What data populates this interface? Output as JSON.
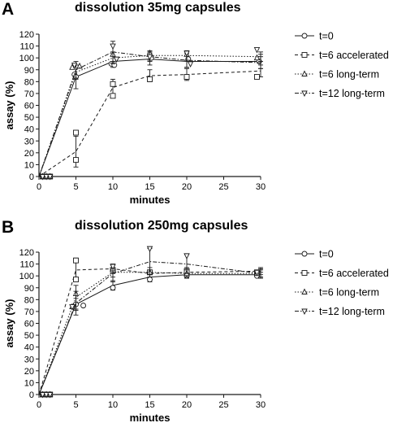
{
  "colors": {
    "ink": "#1a1a1a",
    "background": "#ffffff"
  },
  "chart_data": [
    {
      "panel": "A",
      "type": "line",
      "title": "dissolution 35mg capsules",
      "xlabel": "minutes",
      "ylabel": "assay (%)",
      "xlim": [
        0,
        30
      ],
      "ylim": [
        0,
        120
      ],
      "x_ticks": [
        0,
        5,
        10,
        15,
        20,
        25,
        30
      ],
      "y_ticks": [
        0,
        10,
        20,
        30,
        40,
        50,
        60,
        70,
        80,
        90,
        100,
        110,
        120
      ],
      "legend_position": "right",
      "grid": false,
      "series": [
        {
          "name": "t=0",
          "marker": "circle",
          "line": "solid",
          "x": [
            0,
            5,
            10,
            15,
            20,
            30
          ],
          "y": [
            0,
            84,
            97,
            99,
            97,
            97
          ],
          "err": [
            0,
            10,
            5,
            5,
            5,
            6
          ],
          "points": [
            [
              0.5,
              0
            ],
            [
              1,
              0
            ],
            [
              1.5,
              0
            ],
            [
              4.8,
              86
            ],
            [
              5,
              84
            ],
            [
              9.8,
              95
            ],
            [
              10.2,
              94
            ],
            [
              15.2,
              100
            ],
            [
              20.2,
              99
            ],
            [
              29.8,
              97
            ]
          ]
        },
        {
          "name": "t=6 accelerated",
          "marker": "square",
          "line": "dashed",
          "x": [
            0,
            5,
            10,
            15,
            20,
            30
          ],
          "y": [
            0,
            21,
            75,
            85,
            86,
            89
          ],
          "err": [
            0,
            13,
            7,
            5,
            5,
            5
          ],
          "points": [
            [
              0.5,
              0
            ],
            [
              1,
              0
            ],
            [
              1.5,
              0
            ],
            [
              5,
              37
            ],
            [
              5,
              14
            ],
            [
              10,
              78
            ],
            [
              10,
              68
            ],
            [
              15,
              82
            ],
            [
              20,
              84
            ],
            [
              29.5,
              84
            ]
          ]
        },
        {
          "name": "t=6 long-term",
          "marker": "triangle-up",
          "line": "dotted",
          "x": [
            0,
            5,
            10,
            15,
            20,
            30
          ],
          "y": [
            0,
            88,
            100,
            102,
            102,
            101
          ],
          "err": [
            0,
            6,
            5,
            4,
            4,
            4
          ],
          "points": [
            [
              0.5,
              0
            ],
            [
              1,
              0
            ],
            [
              1.5,
              0
            ],
            [
              4.5,
              92
            ],
            [
              5.5,
              93
            ],
            [
              10,
              103
            ],
            [
              15,
              104
            ],
            [
              20,
              103
            ],
            [
              29.5,
              100
            ]
          ]
        },
        {
          "name": "t=12 long-term",
          "marker": "triangle-down",
          "line": "dash-dot",
          "x": [
            0,
            5,
            10,
            15,
            20,
            30
          ],
          "y": [
            0,
            90,
            105,
            101,
            98,
            96
          ],
          "err": [
            0,
            7,
            9,
            4,
            6,
            5
          ],
          "points": [
            [
              0.5,
              0
            ],
            [
              1,
              0
            ],
            [
              1.5,
              0
            ],
            [
              4.8,
              94
            ],
            [
              10,
              110
            ],
            [
              10.5,
              99
            ],
            [
              15,
              101
            ],
            [
              20,
              104
            ],
            [
              20.5,
              95
            ],
            [
              29.5,
              107
            ]
          ]
        }
      ]
    },
    {
      "panel": "B",
      "type": "line",
      "title": "dissolution 250mg capsules",
      "xlabel": "minutes",
      "ylabel": "assay (%)",
      "xlim": [
        0,
        30
      ],
      "ylim": [
        0,
        120
      ],
      "x_ticks": [
        0,
        5,
        10,
        15,
        20,
        25,
        30
      ],
      "y_ticks": [
        0,
        10,
        20,
        30,
        40,
        50,
        60,
        70,
        80,
        90,
        100,
        110,
        120
      ],
      "legend_position": "right",
      "grid": false,
      "series": [
        {
          "name": "t=0",
          "marker": "circle",
          "line": "solid",
          "x": [
            0,
            5,
            10,
            15,
            20,
            30
          ],
          "y": [
            0,
            76,
            92,
            99,
            101,
            101
          ],
          "err": [
            0,
            5,
            4,
            4,
            3,
            2
          ],
          "points": [
            [
              0.5,
              0
            ],
            [
              1,
              0
            ],
            [
              1.5,
              0
            ],
            [
              5,
              76
            ],
            [
              6,
              75
            ],
            [
              10,
              90
            ],
            [
              15,
              97
            ],
            [
              20,
              100
            ],
            [
              29.5,
              100
            ]
          ]
        },
        {
          "name": "t=6 accelerated",
          "marker": "square",
          "line": "dashed",
          "x": [
            0,
            5,
            10,
            15,
            20,
            30
          ],
          "y": [
            0,
            105,
            106,
            102,
            103,
            104
          ],
          "err": [
            0,
            10,
            4,
            3,
            4,
            3
          ],
          "points": [
            [
              0.5,
              0
            ],
            [
              1,
              0
            ],
            [
              1.5,
              0
            ],
            [
              5,
              113
            ],
            [
              5,
              97
            ],
            [
              10,
              105
            ],
            [
              15,
              103
            ],
            [
              20,
              104
            ],
            [
              29.5,
              103
            ]
          ]
        },
        {
          "name": "t=6 long-term",
          "marker": "triangle-up",
          "line": "dotted",
          "x": [
            0,
            5,
            10,
            15,
            20,
            30
          ],
          "y": [
            0,
            82,
            103,
            103,
            102,
            102
          ],
          "err": [
            0,
            10,
            4,
            4,
            3,
            3
          ],
          "points": [
            [
              0.5,
              0
            ],
            [
              1,
              0
            ],
            [
              1.5,
              0
            ],
            [
              4.5,
              74
            ],
            [
              5,
              85
            ],
            [
              10,
              106
            ],
            [
              15,
              103
            ],
            [
              20,
              102
            ],
            [
              29.5,
              102
            ]
          ]
        },
        {
          "name": "t=12 long-term",
          "marker": "triangle-down",
          "line": "dash-dot",
          "x": [
            0,
            5,
            10,
            15,
            20,
            30
          ],
          "y": [
            0,
            77,
            102,
            112,
            110,
            102
          ],
          "err": [
            0,
            10,
            7,
            11,
            8,
            4
          ],
          "points": [
            [
              0.5,
              0
            ],
            [
              1,
              0
            ],
            [
              1.5,
              0
            ],
            [
              4.5,
              74
            ],
            [
              10,
              108
            ],
            [
              15,
              123
            ],
            [
              20,
              117
            ],
            [
              29.5,
              103
            ]
          ]
        }
      ]
    }
  ]
}
